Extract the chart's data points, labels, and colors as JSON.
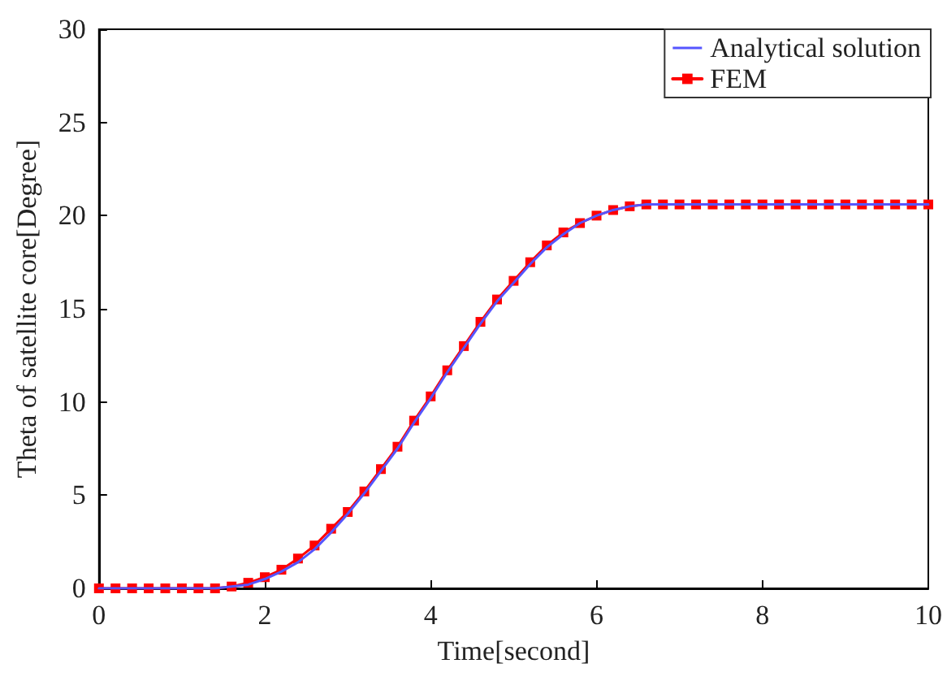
{
  "chart_data": {
    "type": "line",
    "xlabel": "Time[second]",
    "ylabel": "Theta of satellite core[Degree]",
    "x": [
      0,
      0.2,
      0.4,
      0.6,
      0.8,
      1,
      1.2,
      1.4,
      1.6,
      1.8,
      2,
      2.2,
      2.4,
      2.6,
      2.8,
      3,
      3.2,
      3.4,
      3.6,
      3.8,
      4,
      4.2,
      4.4,
      4.6,
      4.8,
      5,
      5.2,
      5.4,
      5.6,
      5.8,
      6,
      6.2,
      6.4,
      6.6,
      6.8,
      7,
      7.2,
      7.4,
      7.6,
      7.8,
      8,
      8.2,
      8.4,
      8.6,
      8.8,
      9,
      9.2,
      9.4,
      9.6,
      9.8,
      10
    ],
    "series": [
      {
        "name": "Analytical solution",
        "color": "#5555ff",
        "marker": "none",
        "values": [
          0,
          0,
          0,
          0,
          0,
          0,
          0,
          0,
          0.1,
          0.2,
          0.5,
          0.9,
          1.4,
          2.1,
          3.0,
          4.0,
          5.1,
          6.3,
          7.5,
          8.9,
          10.2,
          11.6,
          12.9,
          14.2,
          15.4,
          16.4,
          17.4,
          18.3,
          19.0,
          19.6,
          20.0,
          20.3,
          20.5,
          20.6,
          20.6,
          20.6,
          20.6,
          20.6,
          20.6,
          20.6,
          20.6,
          20.6,
          20.6,
          20.6,
          20.6,
          20.6,
          20.6,
          20.6,
          20.6,
          20.6,
          20.6
        ]
      },
      {
        "name": "FEM",
        "color": "#ff0000",
        "marker": "square",
        "values": [
          0,
          0,
          0,
          0,
          0,
          0,
          0,
          0,
          0.1,
          0.3,
          0.6,
          1.0,
          1.6,
          2.3,
          3.2,
          4.1,
          5.2,
          6.4,
          7.6,
          9.0,
          10.3,
          11.7,
          13.0,
          14.3,
          15.5,
          16.5,
          17.5,
          18.4,
          19.1,
          19.6,
          20.0,
          20.3,
          20.5,
          20.6,
          20.6,
          20.6,
          20.6,
          20.6,
          20.6,
          20.6,
          20.6,
          20.6,
          20.6,
          20.6,
          20.6,
          20.6,
          20.6,
          20.6,
          20.6,
          20.6,
          20.6
        ]
      }
    ],
    "xlim": [
      0,
      10
    ],
    "xticks": [
      0,
      2,
      4,
      6,
      8,
      10
    ],
    "ylim": [
      0,
      30
    ],
    "yticks": [
      0,
      5,
      10,
      15,
      20,
      25,
      30
    ],
    "grid": false,
    "legend": "top right",
    "line_style": "solid"
  }
}
